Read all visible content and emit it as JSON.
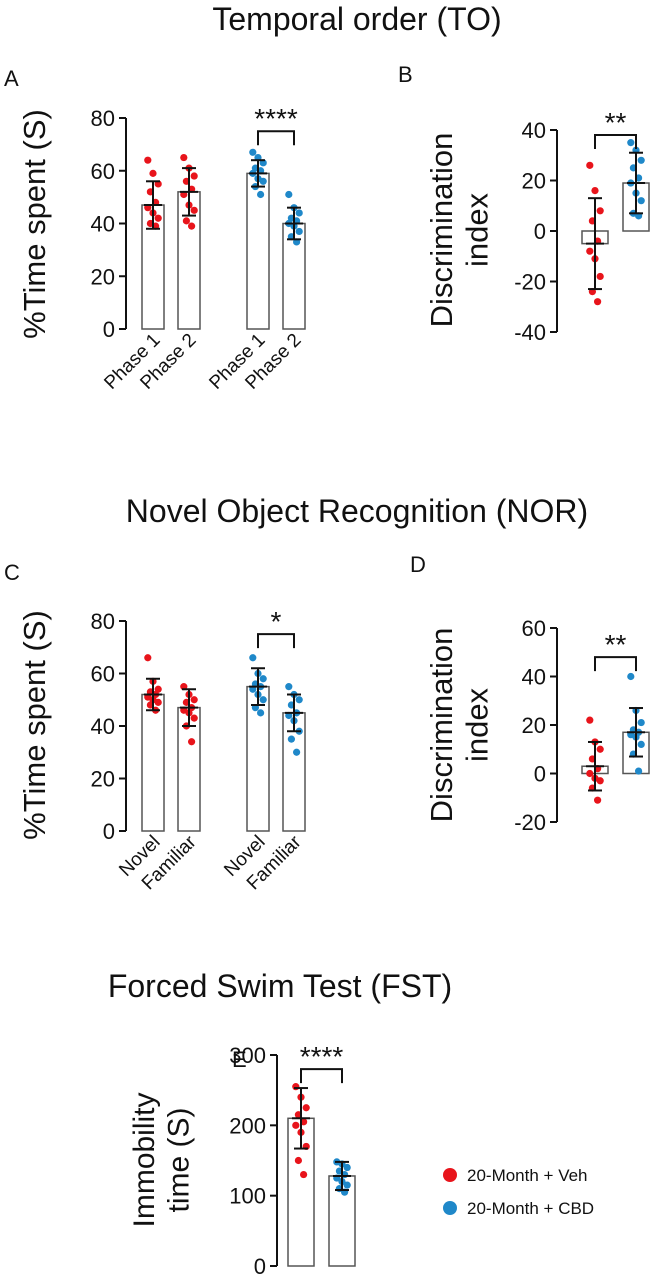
{
  "titles": {
    "temporal": "Temporal order (TO)",
    "nor": "Novel Object Recognition (NOR)",
    "fst": "Forced Swim Test (FST)"
  },
  "legend": [
    {
      "label": "20-Month + Veh",
      "color": "#e8141b"
    },
    {
      "label": "20-Month + CBD",
      "color": "#1f88c9"
    }
  ],
  "chart_data": [
    {
      "type": "bar",
      "panel": "A",
      "ylabel": "%Time spent (S)",
      "ylim": [
        0,
        80
      ],
      "yticks": [
        0,
        20,
        40,
        60,
        80
      ],
      "categories": [
        "Phase 1",
        "Phase 2",
        "Phase 1",
        "Phase 2"
      ],
      "bars": [
        {
          "group": "20-Month + Veh",
          "mean": 47,
          "sd": 9,
          "points": [
            64,
            59,
            55,
            52,
            48,
            46,
            44,
            42,
            40,
            39
          ]
        },
        {
          "group": "20-Month + Veh",
          "mean": 52,
          "sd": 9,
          "points": [
            65,
            61,
            58,
            56,
            53,
            51,
            47,
            45,
            41,
            39
          ]
        },
        {
          "group": "20-Month + CBD",
          "mean": 59,
          "sd": 5,
          "points": [
            67,
            65,
            63,
            61,
            60,
            59,
            57,
            56,
            54,
            51
          ]
        },
        {
          "group": "20-Month + CBD",
          "mean": 40,
          "sd": 6,
          "points": [
            51,
            46,
            44,
            42,
            41,
            40,
            39,
            37,
            35,
            33
          ]
        }
      ],
      "significance": [
        {
          "from": 2,
          "to": 3,
          "label": "****",
          "y": 75
        }
      ]
    },
    {
      "type": "bar",
      "panel": "B",
      "ylabel": "Discrimination index",
      "ylim": [
        -40,
        40
      ],
      "yticks": [
        -40,
        -20,
        0,
        20,
        40
      ],
      "categories": [
        "",
        ""
      ],
      "bars": [
        {
          "group": "20-Month + Veh",
          "mean": -5,
          "sd": 18,
          "points": [
            26,
            16,
            8,
            4,
            -4,
            -8,
            -11,
            -18,
            -24,
            -28
          ]
        },
        {
          "group": "20-Month + CBD",
          "mean": 19,
          "sd": 12,
          "points": [
            35,
            32,
            28,
            25,
            21,
            19,
            15,
            12,
            7,
            6
          ]
        }
      ],
      "significance": [
        {
          "from": 0,
          "to": 1,
          "label": "**",
          "y": 38
        }
      ]
    },
    {
      "type": "bar",
      "panel": "C",
      "ylabel": "%Time spent (S)",
      "ylim": [
        0,
        80
      ],
      "yticks": [
        0,
        20,
        40,
        60,
        80
      ],
      "categories": [
        "Novel",
        "Familiar",
        "Novel",
        "Familiar"
      ],
      "bars": [
        {
          "group": "20-Month + Veh",
          "mean": 52,
          "sd": 6,
          "points": [
            66,
            57,
            54,
            53,
            52,
            51,
            50,
            49,
            48,
            46
          ]
        },
        {
          "group": "20-Month + Veh",
          "mean": 47,
          "sd": 7,
          "points": [
            55,
            52,
            50,
            49,
            47,
            46,
            45,
            43,
            40,
            34
          ]
        },
        {
          "group": "20-Month + CBD",
          "mean": 55,
          "sd": 7,
          "points": [
            66,
            60,
            58,
            56,
            55,
            54,
            52,
            50,
            47,
            45
          ]
        },
        {
          "group": "20-Month + CBD",
          "mean": 45,
          "sd": 7,
          "points": [
            55,
            52,
            50,
            48,
            45,
            44,
            42,
            38,
            35,
            30
          ]
        }
      ],
      "significance": [
        {
          "from": 2,
          "to": 3,
          "label": "*",
          "y": 75
        }
      ]
    },
    {
      "type": "bar",
      "panel": "D",
      "ylabel": "Discrimination index",
      "ylim": [
        -20,
        60
      ],
      "yticks": [
        -20,
        0,
        20,
        40,
        60
      ],
      "categories": [
        "",
        ""
      ],
      "bars": [
        {
          "group": "20-Month + Veh",
          "mean": 3,
          "sd": 10,
          "points": [
            22,
            13,
            10,
            6,
            2,
            0,
            -2,
            -3,
            -6,
            -11
          ]
        },
        {
          "group": "20-Month + CBD",
          "mean": 17,
          "sd": 10,
          "points": [
            40,
            26,
            21,
            18,
            17,
            16,
            15,
            12,
            8,
            1
          ]
        }
      ],
      "significance": [
        {
          "from": 0,
          "to": 1,
          "label": "**",
          "y": 48
        }
      ]
    },
    {
      "type": "bar",
      "panel": "E",
      "ylabel": "Immobility time (S)",
      "ylim": [
        0,
        300
      ],
      "yticks": [
        0,
        100,
        200,
        300
      ],
      "categories": [
        "",
        ""
      ],
      "bars": [
        {
          "group": "20-Month + Veh",
          "mean": 210,
          "sd": 43,
          "points": [
            255,
            240,
            225,
            215,
            205,
            200,
            190,
            170,
            150,
            130
          ]
        },
        {
          "group": "20-Month + CBD",
          "mean": 128,
          "sd": 20,
          "points": [
            148,
            145,
            140,
            135,
            130,
            125,
            120,
            115,
            110,
            105
          ]
        }
      ],
      "significance": [
        {
          "from": 0,
          "to": 1,
          "label": "****",
          "y": 280
        }
      ]
    }
  ]
}
